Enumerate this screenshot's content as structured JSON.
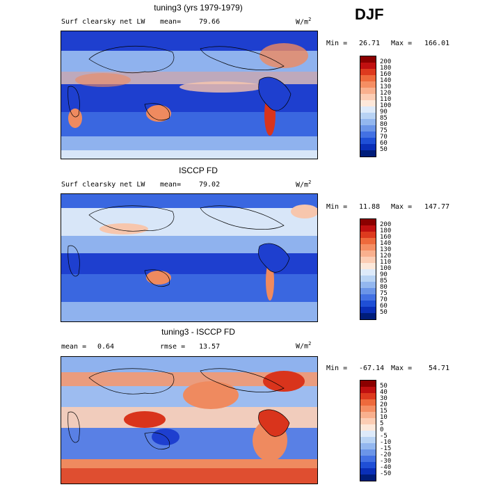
{
  "season": "DJF",
  "panels": [
    {
      "title": "tuning3 (yrs 1979-1979)",
      "field": "Surf clearsky net LW",
      "mean_label": "mean=",
      "mean_value": "79.66",
      "units_base": "W/m",
      "units_exp": "2",
      "min_label": "Min =",
      "min_value": "26.71",
      "max_label": "Max =",
      "max_value": "166.01",
      "colorbar_levels": [
        "200",
        "180",
        "160",
        "140",
        "130",
        "120",
        "110",
        "100",
        "90",
        "85",
        "80",
        "75",
        "70",
        "60",
        "50"
      ],
      "colorbar_colors": [
        "#8b0000",
        "#c01010",
        "#dd3a1e",
        "#ee6a3c",
        "#f58e63",
        "#f9b08e",
        "#fccdb4",
        "#fde8da",
        "#ddeafa",
        "#b8d3f4",
        "#93b7ef",
        "#6b95e8",
        "#4371e3",
        "#1f4fd6",
        "#0a2fb8",
        "#001d7a"
      ]
    },
    {
      "title": "ISCCP FD",
      "field": "Surf clearsky net LW",
      "mean_label": "mean=",
      "mean_value": "79.02",
      "units_base": "W/m",
      "units_exp": "2",
      "min_label": "Min =",
      "min_value": "11.88",
      "max_label": "Max =",
      "max_value": "147.77",
      "colorbar_levels": [
        "200",
        "180",
        "160",
        "140",
        "130",
        "120",
        "110",
        "100",
        "90",
        "85",
        "80",
        "75",
        "70",
        "60",
        "50"
      ],
      "colorbar_colors": [
        "#8b0000",
        "#c01010",
        "#dd3a1e",
        "#ee6a3c",
        "#f58e63",
        "#f9b08e",
        "#fccdb4",
        "#fde8da",
        "#ddeafa",
        "#b8d3f4",
        "#93b7ef",
        "#6b95e8",
        "#4371e3",
        "#1f4fd6",
        "#0a2fb8",
        "#001d7a"
      ]
    },
    {
      "title": "tuning3 - ISCCP FD",
      "mean_label": "mean =",
      "mean_value": "0.64",
      "rmse_label": "rmse =",
      "rmse_value": "13.57",
      "units_base": "W/m",
      "units_exp": "2",
      "min_label": "Min =",
      "min_value": "-67.14",
      "max_label": "Max =",
      "max_value": "54.71",
      "colorbar_levels": [
        "50",
        "40",
        "30",
        "20",
        "15",
        "10",
        "5",
        "0",
        "-5",
        "-10",
        "-15",
        "-20",
        "-30",
        "-40",
        "-50"
      ],
      "colorbar_colors": [
        "#8b0000",
        "#c01010",
        "#dd3a1e",
        "#ee6a3c",
        "#f58e63",
        "#f9b08e",
        "#fccdb4",
        "#fde8da",
        "#ddeafa",
        "#b8d3f4",
        "#93b7ef",
        "#6b95e8",
        "#4371e3",
        "#1f4fd6",
        "#0a2fb8",
        "#001d7a"
      ]
    }
  ],
  "map_palette": {
    "ocean_deep": "#1e3fcf",
    "ocean_mid": "#3a67e0",
    "ocean_light": "#8fb2ee",
    "pale": "#d8e6f8",
    "warm_light": "#f7c6ad",
    "warm": "#ef8a5f",
    "hot": "#d9341c"
  }
}
